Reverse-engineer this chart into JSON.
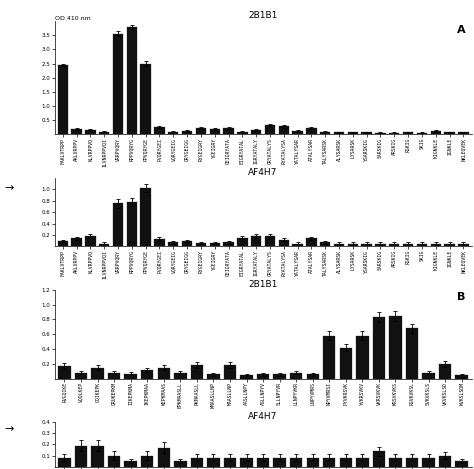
{
  "panel_A_2B1B1": {
    "title": "2B1B1",
    "ylim": [
      0,
      4.0
    ],
    "yticks": [
      0.5,
      1.0,
      1.5,
      2.0,
      2.5,
      3.0,
      3.5
    ],
    "labels": [
      "FAKLVTRPP",
      "AKLVRPPV",
      "KLVRPPVQ",
      "ILVNRPPVQI",
      "VRRPVQRY",
      "RPPVQRYG",
      "PPVQRYGE",
      "PVQRYGEI",
      "VQRYGEIG",
      "QRYGEIGG",
      "RYGEIGRY",
      "YGEIGRY",
      "GEIGRYATA",
      "EIGRYATAL",
      "IGRYATALY",
      "GRYATALYS",
      "RYATALYSA",
      "YATALYSAR",
      "ATALYSAR",
      "TALYSARSK",
      "ALYSARSK",
      "LYSARSK",
      "YSARSKIG",
      "SARSKIG",
      "ARSKIG",
      "RSKIG",
      "SKIG",
      "KIGNKLE",
      "IGNKLE",
      "NKLEQVEK"
    ],
    "values": [
      2.45,
      0.18,
      0.17,
      0.1,
      3.55,
      3.8,
      2.5,
      0.25,
      0.1,
      0.12,
      0.22,
      0.18,
      0.22,
      0.1,
      0.15,
      0.33,
      0.28,
      0.12,
      0.22,
      0.1,
      0.07,
      0.07,
      0.07,
      0.05,
      0.05,
      0.07,
      0.05,
      0.12,
      0.07,
      0.07
    ],
    "errors": [
      0.05,
      0.03,
      0.03,
      0.02,
      0.09,
      0.07,
      0.08,
      0.04,
      0.02,
      0.02,
      0.03,
      0.03,
      0.03,
      0.02,
      0.03,
      0.04,
      0.04,
      0.03,
      0.04,
      0.02,
      0.02,
      0.02,
      0.02,
      0.02,
      0.02,
      0.02,
      0.02,
      0.03,
      0.02,
      0.02
    ]
  },
  "panel_A_AF4H7": {
    "title": "AF4H7",
    "ylim": [
      0.0,
      1.2
    ],
    "yticks": [
      0.2,
      0.4,
      0.6,
      0.8,
      1.0
    ],
    "labels": [
      "FAKLVTRPP",
      "AKLVRPPV",
      "KLVRPPVQ",
      "ILVNRPPVQI",
      "VRRPVQRY",
      "RPPVQRYG",
      "PPVQRYGE",
      "PVQRYGEI",
      "VQRYGEIG",
      "QRYGEIGG",
      "RYGEIGRY",
      "YGEIGRY",
      "GEIGRYATA",
      "EIGRYATAL",
      "IGRYATALY",
      "GRYATALYS",
      "RYATALYSA",
      "YATALYSAR",
      "ATALYSAR",
      "TALYSARSK",
      "ALYSARSK",
      "LYSARSK",
      "YSARSKIG",
      "SARSKIG",
      "ARSKIG",
      "RSKIG",
      "SKIG",
      "KIGNKLE",
      "IGNKLE",
      "NKLEQVEK"
    ],
    "values": [
      0.09,
      0.14,
      0.18,
      0.05,
      0.75,
      0.77,
      1.02,
      0.13,
      0.07,
      0.1,
      0.06,
      0.06,
      0.07,
      0.14,
      0.18,
      0.18,
      0.12,
      0.05,
      0.14,
      0.07,
      0.05,
      0.05,
      0.05,
      0.05,
      0.05,
      0.05,
      0.05,
      0.05,
      0.05,
      0.05
    ],
    "errors": [
      0.02,
      0.03,
      0.04,
      0.02,
      0.08,
      0.07,
      0.07,
      0.03,
      0.02,
      0.02,
      0.02,
      0.02,
      0.02,
      0.04,
      0.04,
      0.04,
      0.03,
      0.02,
      0.03,
      0.02,
      0.02,
      0.02,
      0.02,
      0.02,
      0.02,
      0.02,
      0.02,
      0.02,
      0.02,
      0.02
    ]
  },
  "panel_B_2B1B1": {
    "title": "2B1B1",
    "ylim": [
      0.0,
      1.2
    ],
    "yticks": [
      0.2,
      0.4,
      0.6,
      0.8,
      1.0,
      1.2
    ],
    "labels": [
      "RVGQIKE",
      "VQQLKEP",
      "GQIKEPK",
      "QRUKEPKM",
      "IIKEPKMA",
      "IKEPKMAA",
      "KEPKMAAS",
      "EPKMAASLL",
      "PKMAASLL",
      "KMAASLLNP",
      "MAASLLNP",
      "AASLLNPY",
      "ASLLNPYV",
      "SLLNPYVR",
      "LLNPYVKR",
      "LNPYVMRS",
      "NPYVMRSI",
      "PYVKRSVK",
      "YVKRSVKV",
      "VKRSVKVK",
      "KRSVKVKS",
      "RSVKVKSL",
      "SVKVKSLS",
      "VKVKSLSD",
      "KVKSLSDM"
    ],
    "values": [
      0.17,
      0.08,
      0.15,
      0.08,
      0.07,
      0.12,
      0.15,
      0.08,
      0.18,
      0.06,
      0.19,
      0.05,
      0.06,
      0.06,
      0.08,
      0.06,
      0.58,
      0.42,
      0.58,
      0.83,
      0.85,
      0.68,
      0.08,
      0.2,
      0.05
    ],
    "errors": [
      0.04,
      0.02,
      0.03,
      0.02,
      0.02,
      0.03,
      0.03,
      0.02,
      0.04,
      0.02,
      0.04,
      0.02,
      0.02,
      0.02,
      0.02,
      0.02,
      0.06,
      0.05,
      0.06,
      0.07,
      0.07,
      0.06,
      0.02,
      0.04,
      0.02
    ]
  },
  "panel_B_AF4H7": {
    "title": "AF4H7",
    "ylim": [
      0.0,
      0.4
    ],
    "yticks": [
      0.1,
      0.2,
      0.3,
      0.4
    ],
    "labels": [
      "RVGQIKE",
      "VQQLKEP",
      "GQIKEPK",
      "QRUKEPKM",
      "IIKEPKMA",
      "IKEPKMAA",
      "KEPKMAAS",
      "EPKMAASLL",
      "PKMAASLL",
      "KMAASLLNP",
      "MAASLLNP",
      "AASLLNPY",
      "ASLLNPYV",
      "SLLNPYVR",
      "LLNPYVKR",
      "LNPYVMRS",
      "NPYVMRSI",
      "PYVKRSVK",
      "YVKRSVKV",
      "VKRSVKVK",
      "KRSVKVKS",
      "RSVKVKSL",
      "SVKVKSLS",
      "VKVKSLSD",
      "KVKSLSDM"
    ],
    "values": [
      0.08,
      0.19,
      0.19,
      0.1,
      0.05,
      0.1,
      0.17,
      0.05,
      0.08,
      0.08,
      0.08,
      0.08,
      0.08,
      0.08,
      0.08,
      0.08,
      0.08,
      0.08,
      0.08,
      0.14,
      0.08,
      0.08,
      0.08,
      0.1,
      0.05
    ],
    "errors": [
      0.03,
      0.05,
      0.05,
      0.04,
      0.02,
      0.04,
      0.05,
      0.02,
      0.03,
      0.03,
      0.03,
      0.03,
      0.03,
      0.03,
      0.03,
      0.03,
      0.03,
      0.03,
      0.03,
      0.04,
      0.03,
      0.03,
      0.03,
      0.03,
      0.02
    ]
  },
  "bar_color": "#111111",
  "bar_width": 0.75,
  "label_A": "A",
  "label_B": "B",
  "od_label": "OD 410 nm"
}
